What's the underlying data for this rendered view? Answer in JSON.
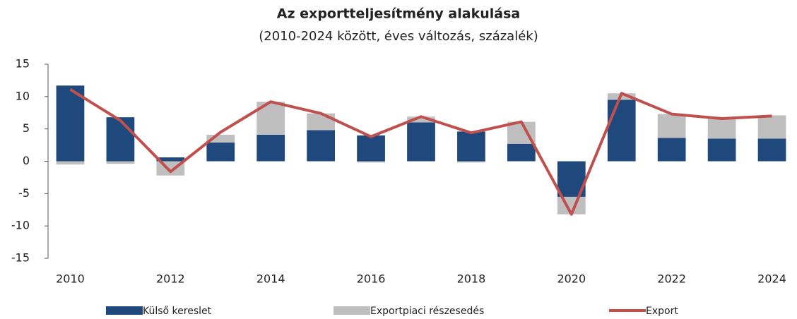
{
  "chart_data": {
    "type": "bar",
    "title": "Az exportteljesítmény alakulása",
    "subtitle": "(2010-2024 között, éves változás, százalék)",
    "categories": [
      "2010",
      null,
      "2012",
      null,
      "2014",
      null,
      "2016",
      null,
      "2018",
      null,
      "2020",
      null,
      "2022",
      null,
      "2024"
    ],
    "series": [
      {
        "name": "Külső kereslet",
        "color": "#1f497d",
        "type": "bar",
        "values": [
          11.7,
          6.8,
          0.6,
          2.9,
          4.1,
          4.8,
          4.0,
          6.0,
          4.6,
          2.7,
          -5.5,
          9.5,
          3.6,
          3.5,
          3.5
        ]
      },
      {
        "name": "Exportpiaci részesedés",
        "color": "#bfbfbf",
        "type": "bar",
        "values": [
          -0.5,
          -0.4,
          -2.2,
          1.2,
          5.1,
          2.6,
          -0.2,
          0.9,
          -0.2,
          3.4,
          -2.7,
          1.0,
          3.7,
          3.1,
          3.6
        ]
      },
      {
        "name": "Export",
        "color": "#c0504d",
        "type": "line",
        "values": [
          11.1,
          6.3,
          -1.6,
          4.5,
          9.2,
          7.4,
          3.8,
          6.9,
          4.4,
          6.1,
          -8.2,
          10.5,
          7.3,
          6.6,
          7.0
        ]
      }
    ],
    "ylim": [
      -15,
      15
    ],
    "yticks": [
      -15,
      -10,
      -5,
      0,
      5,
      10,
      15
    ],
    "stacked": true
  }
}
